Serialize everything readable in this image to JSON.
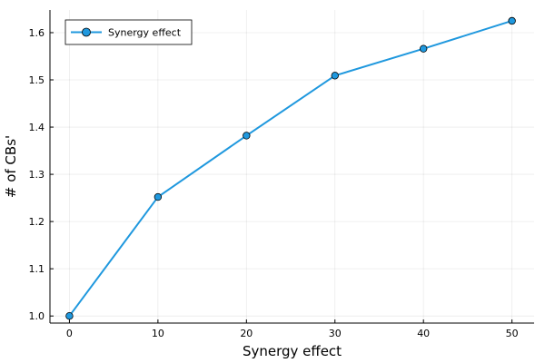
{
  "chart_data": {
    "type": "line",
    "title": "",
    "xlabel": "Synergy effect",
    "ylabel": "# of CBs'",
    "x": [
      0,
      10,
      20,
      30,
      40,
      50
    ],
    "series": [
      {
        "name": "Synergy effect",
        "values": [
          1.0,
          1.252,
          1.382,
          1.509,
          1.566,
          1.625
        ],
        "color": "#1f98de",
        "marker": "circle"
      }
    ],
    "xlim": [
      -2.2,
      52.5
    ],
    "ylim": [
      0.985,
      1.648
    ],
    "xticks": [
      0,
      10,
      20,
      30,
      40,
      50
    ],
    "yticks": [
      1.0,
      1.1,
      1.2,
      1.3,
      1.4,
      1.5,
      1.6
    ],
    "xtick_labels": [
      "0",
      "10",
      "20",
      "30",
      "40",
      "50"
    ],
    "ytick_labels": [
      "1.0",
      "1.1",
      "1.2",
      "1.3",
      "1.4",
      "1.5",
      "1.6"
    ],
    "grid": true,
    "legend_position": "top-left"
  }
}
